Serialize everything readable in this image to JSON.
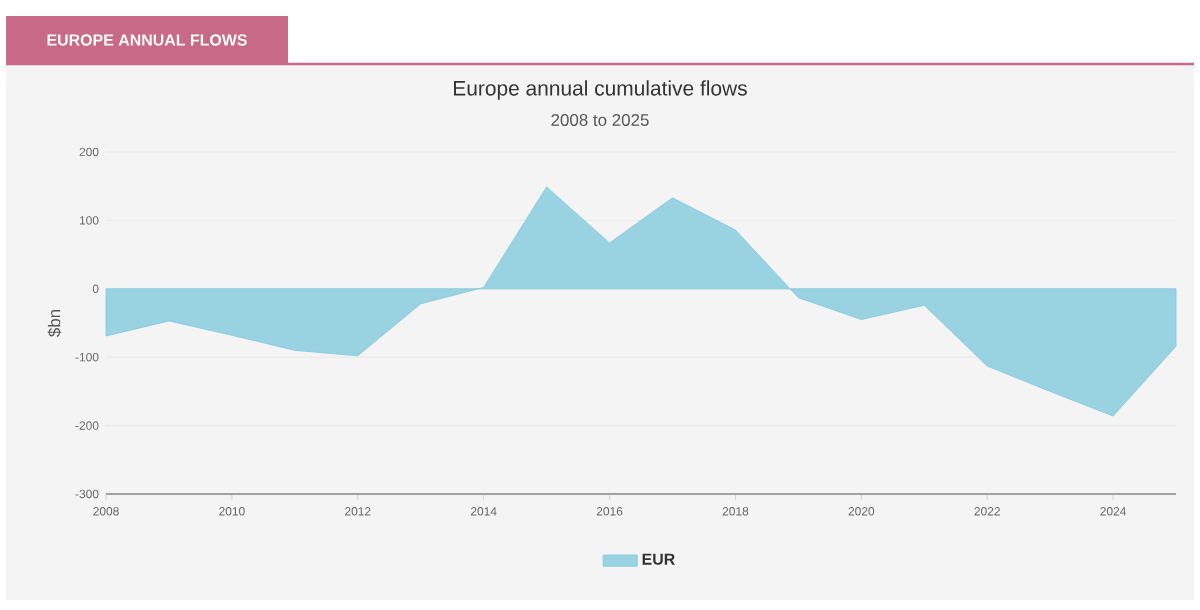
{
  "chart_data": {
    "type": "area",
    "title": "Europe annual cumulative flows",
    "subtitle": "2008 to 2025",
    "ylabel": "$bn",
    "annotations": [
      "EUROPE ANNUAL FLOWS"
    ],
    "x": [
      2008,
      2009,
      2010,
      2011,
      2012,
      2013,
      2014,
      2015,
      2016,
      2017,
      2018,
      2019,
      2020,
      2021,
      2022,
      2023,
      2024,
      2025
    ],
    "series": [
      {
        "name": "EUR",
        "color": "#99d3e2",
        "values": [
          -69,
          -47,
          -68,
          -90,
          -98,
          -22,
          2,
          149,
          67,
          133,
          86,
          -13,
          -45,
          -24,
          -113,
          -150,
          -186,
          -84
        ]
      }
    ],
    "xlim": [
      2008,
      2025
    ],
    "ylim": [
      -300,
      200
    ],
    "xticks": [
      2008,
      2010,
      2012,
      2014,
      2016,
      2018,
      2020,
      2022,
      2024
    ],
    "yticks": [
      -300,
      -200,
      -100,
      0,
      100,
      200
    ],
    "grid": "y",
    "legend": "bottom"
  }
}
